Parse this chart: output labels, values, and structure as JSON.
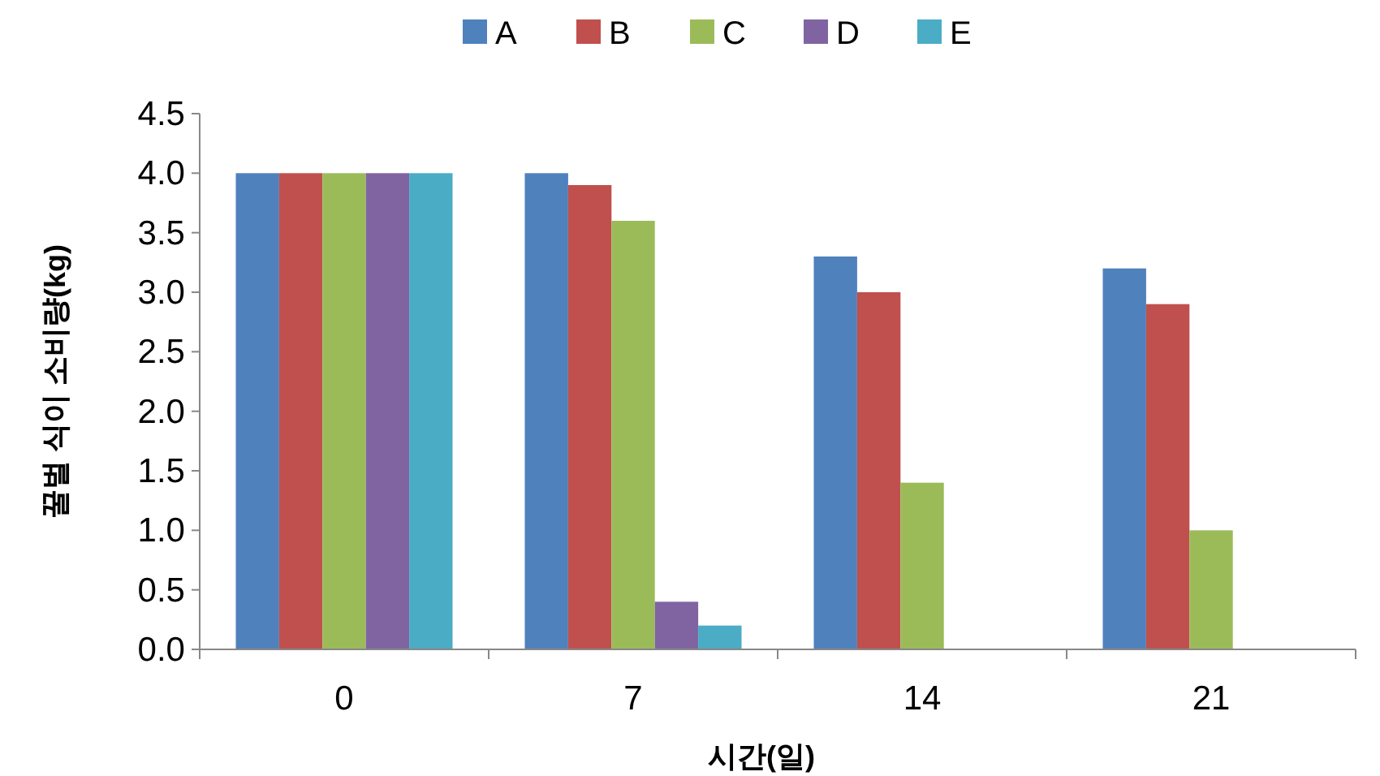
{
  "chart_data": {
    "type": "bar",
    "xlabel": "시간(일)",
    "ylabel": "꿀벌 식이 소비량(kg)",
    "categories": [
      "0",
      "7",
      "14",
      "21"
    ],
    "series": [
      {
        "name": "A",
        "color": "#4f81bd",
        "values": [
          4.0,
          4.0,
          3.3,
          3.2
        ]
      },
      {
        "name": "B",
        "color": "#c0504d",
        "values": [
          4.0,
          3.9,
          3.0,
          2.9
        ]
      },
      {
        "name": "C",
        "color": "#9bbb59",
        "values": [
          4.0,
          3.6,
          1.4,
          1.0
        ]
      },
      {
        "name": "D",
        "color": "#8064a2",
        "values": [
          4.0,
          0.4,
          null,
          null
        ]
      },
      {
        "name": "E",
        "color": "#4bacc6",
        "values": [
          4.0,
          0.2,
          null,
          null
        ]
      }
    ],
    "ylim": [
      0,
      4.5
    ],
    "yticks": [
      {
        "value": 0,
        "label": "0.0"
      },
      {
        "value": 0.5,
        "label": "0.5"
      },
      {
        "value": 1,
        "label": "1.0"
      },
      {
        "value": 1.5,
        "label": "1.5"
      },
      {
        "value": 2,
        "label": "2.0"
      },
      {
        "value": 2.5,
        "label": "2.5"
      },
      {
        "value": 3,
        "label": "3.0"
      },
      {
        "value": 3.5,
        "label": "3.5"
      },
      {
        "value": 4,
        "label": "4.0"
      },
      {
        "value": 4.5,
        "label": "4.5"
      }
    ],
    "grid": false,
    "legend": "top"
  }
}
